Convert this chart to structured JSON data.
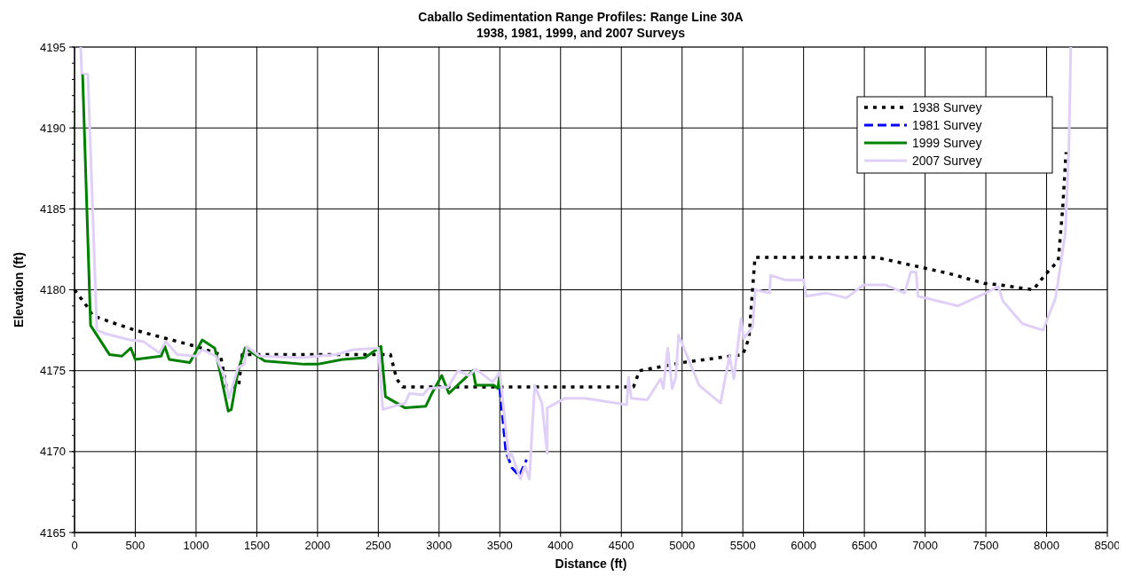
{
  "chart_data": {
    "type": "line",
    "title": "Caballo Sedimentation Range Profiles: Range Line 30A",
    "subtitle": "1938, 1981, 1999, and 2007 Surveys",
    "xlabel": "Distance (ft)",
    "ylabel": "Elevation (ft)",
    "xlim": [
      0,
      8500
    ],
    "xticks": [
      0,
      500,
      1000,
      1500,
      2000,
      2500,
      3000,
      3500,
      4000,
      4500,
      5000,
      5500,
      6000,
      6500,
      7000,
      7500,
      8000,
      8500
    ],
    "ylim": [
      4165,
      4195
    ],
    "yticks": [
      4165,
      4170,
      4175,
      4180,
      4185,
      4190,
      4195
    ],
    "grid": true,
    "legend": "top right",
    "marker": "none",
    "series": [
      {
        "name": "1938 Survey",
        "color": "#000000",
        "line_style": "dotted",
        "x": [
          0,
          100,
          150,
          300,
          500,
          750,
          1000,
          1200,
          1250,
          1350,
          1380,
          1500,
          2500,
          2600,
          2650,
          2700,
          4600,
          4650,
          5000,
          5500,
          5550,
          5600,
          6600,
          7200,
          7485,
          7618,
          7890,
          7985,
          8096,
          8132,
          8160
        ],
        "values": [
          4180,
          4179,
          4178.4,
          4178,
          4177.5,
          4177,
          4176.5,
          4176,
          4174,
          4174,
          4176,
          4176,
          4176,
          4176,
          4174.5,
          4174,
          4174,
          4175,
          4175.5,
          4176,
          4177,
          4182,
          4182,
          4181,
          4180.4,
          4180.3,
          4180,
          4180.9,
          4181.8,
          4185,
          4188.5
        ]
      },
      {
        "name": "1981 Survey",
        "color": "#0000ff",
        "line_style": "dashed",
        "x": [
          3500,
          3550,
          3600,
          3660,
          3720
        ],
        "values": [
          4173.9,
          4170,
          4169,
          4168.5,
          4169.5
        ]
      },
      {
        "name": "1999 Survey",
        "color": "#008000",
        "line_style": "solid",
        "x": [
          66,
          132,
          287,
          390,
          463,
          500,
          713,
          743,
          779,
          949,
          1051,
          1154,
          1198,
          1265,
          1290,
          1346,
          1404,
          1566,
          1890,
          2000,
          2206,
          2390,
          2522,
          2559,
          2721,
          2890,
          2941,
          3022,
          3081,
          3280,
          3302,
          3449,
          3485,
          3500
        ],
        "values": [
          4193.4,
          4177.8,
          4176,
          4175.9,
          4176.4,
          4175.7,
          4175.9,
          4176.5,
          4175.7,
          4175.5,
          4176.9,
          4176.4,
          4174.9,
          4172.5,
          4172.6,
          4175,
          4176.4,
          4175.6,
          4175.4,
          4175.4,
          4175.7,
          4175.8,
          4176.5,
          4173.4,
          4172.7,
          4172.8,
          4173.6,
          4174.7,
          4173.6,
          4175,
          4174.1,
          4174.1,
          4173.9,
          4174.9
        ]
      },
      {
        "name": "2007 Survey",
        "color": "#e0d0f8",
        "line_style": "solid",
        "x": [
          51,
          59,
          110,
          184,
          250,
          456,
          566,
          699,
          750,
          846,
          1000,
          1051,
          1162,
          1235,
          1272,
          1346,
          1397,
          1419,
          1522,
          1860,
          2154,
          2294,
          2500,
          2537,
          2721,
          2757,
          2868,
          2912,
          3074,
          3155,
          3243,
          3302,
          3441,
          3500,
          3574,
          3596,
          3669,
          3706,
          3743,
          3787,
          3846,
          3890,
          3890,
          4037,
          4199,
          4544,
          4559,
          4581,
          4713,
          4824,
          4846,
          4882,
          4919,
          4948,
          4971,
          5140,
          5316,
          5390,
          5426,
          5485,
          5507,
          5581,
          5603,
          5721,
          5728,
          5853,
          6000,
          6022,
          6184,
          6353,
          6493,
          6677,
          6831,
          6882,
          6926,
          6941,
          7272,
          7471,
          7603,
          7640,
          7801,
          7971,
          8074,
          8110,
          8154,
          8184,
          8199
        ],
        "values": [
          4195,
          4193.4,
          4193.3,
          4177.5,
          4177.3,
          4176.9,
          4176.8,
          4176.1,
          4176.8,
          4176,
          4175.9,
          4176.3,
          4175.9,
          4174.6,
          4173.3,
          4175.2,
          4175.4,
          4176.5,
          4175.9,
          4175.8,
          4176,
          4176.3,
          4176.4,
          4172.6,
          4173,
          4173.6,
          4173.5,
          4173.9,
          4174,
          4175,
          4174.7,
          4175.1,
          4174.3,
          4174.9,
          4169.6,
          4169.9,
          4168.3,
          4169.1,
          4168.3,
          4174.1,
          4173,
          4169.9,
          4172.7,
          4173.3,
          4173.3,
          4172.9,
          4174.6,
          4173.3,
          4173.2,
          4174.5,
          4173.9,
          4176.4,
          4173.9,
          4174.6,
          4177.2,
          4174.1,
          4173,
          4175.9,
          4174.5,
          4178.2,
          4177,
          4177.7,
          4180,
          4179.8,
          4180.9,
          4180.6,
          4180.6,
          4179.6,
          4179.8,
          4179.5,
          4180.3,
          4180.3,
          4179.8,
          4181.1,
          4181.1,
          4179.6,
          4179,
          4179.7,
          4180.2,
          4179.3,
          4177.9,
          4177.5,
          4179.5,
          4181.3,
          4183.5,
          4188.9,
          4195
        ]
      }
    ]
  }
}
